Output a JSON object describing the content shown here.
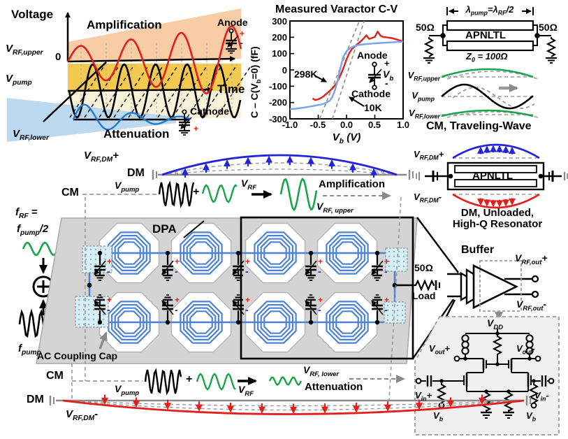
{
  "marks": {
    "plus": "+",
    "minus": "-"
  },
  "pump_panel": {
    "voltage": "Voltage",
    "amplification": "Amplification",
    "attenuation": "Attenuation",
    "v_rf_upper": "V_{RF,upper}",
    "zero": "0",
    "v_pump": "V_{pump}",
    "time": "Time",
    "v_rf_lower": "V_{RF,lower}",
    "anode": "Anode",
    "cathode": "Cathode"
  },
  "cv_panel": {
    "label_298k": "298K",
    "label_10k": "10K",
    "anode": "Anode",
    "cathode": "Cathode",
    "vb": "V_{b}"
  },
  "chart_data": {
    "type": "line",
    "title": "Measured Varactor C-V",
    "xlabel": "V_{b} (V)",
    "ylabel": "C – C(V_{b}=0) (fF)",
    "xlim": [
      -1.0,
      1.0
    ],
    "ylim": [
      -300,
      300
    ],
    "xticks": [
      "-1.0",
      "-0.5",
      "0.0",
      "0.5",
      "1.0"
    ],
    "yticks": [
      300,
      200,
      100,
      0,
      -100,
      -200,
      -300
    ],
    "grid": false,
    "series": [
      {
        "name": "298K",
        "color": "#e41e1a",
        "points": [
          [
            -0.6,
            -175
          ],
          [
            -0.55,
            -185
          ],
          [
            -0.5,
            -180
          ],
          [
            -0.45,
            -172
          ],
          [
            -0.4,
            -160
          ],
          [
            -0.35,
            -145
          ],
          [
            -0.3,
            -130
          ],
          [
            -0.25,
            -113
          ],
          [
            -0.2,
            -93
          ],
          [
            -0.15,
            -63
          ],
          [
            -0.1,
            -28
          ],
          [
            -0.05,
            15
          ],
          [
            0,
            65
          ],
          [
            0.05,
            105
          ],
          [
            0.1,
            130
          ],
          [
            0.15,
            145
          ],
          [
            0.2,
            160
          ],
          [
            0.25,
            175
          ],
          [
            0.3,
            192
          ],
          [
            0.35,
            212
          ],
          [
            0.4,
            190
          ],
          [
            0.45,
            196
          ],
          [
            0.5,
            202
          ],
          [
            0.55,
            235
          ],
          [
            0.6,
            210
          ],
          [
            0.65,
            202
          ],
          [
            0.7,
            200
          ],
          [
            0.75,
            197
          ],
          [
            0.8,
            195
          ],
          [
            0.85,
            190
          ],
          [
            0.9,
            185
          ],
          [
            0.95,
            180
          ],
          [
            1.0,
            175
          ]
        ]
      },
      {
        "name": "10K",
        "color": "#7aa3ee",
        "points": [
          [
            -1.0,
            -240
          ],
          [
            -0.9,
            -238
          ],
          [
            -0.8,
            -233
          ],
          [
            -0.7,
            -228
          ],
          [
            -0.6,
            -222
          ],
          [
            -0.5,
            -215
          ],
          [
            -0.45,
            -212
          ],
          [
            -0.4,
            -207
          ],
          [
            -0.35,
            -200
          ],
          [
            -0.3,
            -190
          ],
          [
            -0.25,
            -165
          ],
          [
            -0.2,
            -120
          ],
          [
            -0.15,
            -55
          ],
          [
            -0.1,
            25
          ],
          [
            -0.05,
            85
          ],
          [
            0,
            115
          ],
          [
            0.05,
            130
          ],
          [
            0.1,
            140
          ],
          [
            0.15,
            147
          ],
          [
            0.2,
            152
          ],
          [
            0.3,
            157
          ],
          [
            0.4,
            160
          ],
          [
            0.5,
            163
          ],
          [
            0.6,
            165
          ],
          [
            0.7,
            167
          ],
          [
            0.8,
            169
          ],
          [
            0.9,
            171
          ],
          [
            1.0,
            173
          ]
        ]
      }
    ],
    "tangents": [
      [
        -0.475,
        -300,
        0.225,
        300
      ],
      [
        -0.25,
        -300,
        0.3125,
        300
      ]
    ]
  },
  "tw_panel": {
    "dimension": "λ_{pump}=λ_{RF}/2",
    "apnltl": "APNLTL",
    "z0": "Z_{0} = 100Ω",
    "res_left": "50Ω",
    "res_right": "50Ω",
    "v_rf_upper": "V_{RF,upper}",
    "v_pump": "V_{pump}",
    "v_rf_lower": "V_{RF,lower}",
    "heading": "CM, Traveling-Wave"
  },
  "dm_top": {
    "label": "V_{RF,DM}+",
    "dm": "DM",
    "cm": "CM",
    "v_pump": "V_{pump}",
    "plus": "+",
    "v_rf": "V_{RF}",
    "amplification": "Amplification",
    "v_rf_upper": "V_{RF, upper}"
  },
  "resonator": {
    "top": "V_{RF,DM}+",
    "apnltl": "APNLTL",
    "bottom": "V_{RF,DM}-",
    "caption1": "DM, Unloaded,",
    "caption2": "High-Q Resonator"
  },
  "input_chain": {
    "f_rf": "f_{RF} =",
    "f_pump_half": "f_{pump}/2",
    "f_pump": "f_{pump}"
  },
  "dpa": {
    "title": "DPA",
    "ac_cap": "AC Coupling Cap",
    "load_ohm": "50Ω",
    "load": "Load"
  },
  "buffer": {
    "title": "Buffer",
    "out_p": "V_{RF,out}+",
    "out_m": "V_{RF,out}-"
  },
  "schematic": {
    "vdd": "V_{DD}",
    "vout_p": "V_{out}+",
    "vout_m": "V_{out}-",
    "vin_p": "V_{in}+",
    "vin_m": "V_{in}-",
    "vb_left": "V_{b}",
    "vb_right": "V_{b}"
  },
  "dm_bottom": {
    "cm": "CM",
    "dm": "DM",
    "v_pump": "V_{pump}",
    "plus": "+",
    "v_rf": "V_{RF}",
    "v_rf_lower": "V_{RF, lower}",
    "attenuation": "Attenuation",
    "label": "V_{RF,DM}-"
  }
}
